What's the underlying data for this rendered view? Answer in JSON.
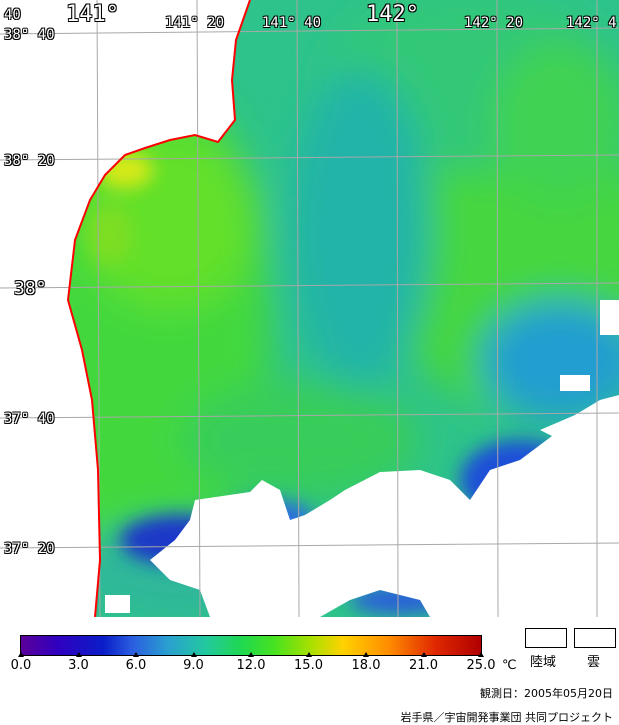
{
  "map": {
    "longitude_labels": [
      "141°",
      "141° 20",
      "141° 40",
      "142°",
      "142° 20",
      "142° 4"
    ],
    "latitude_labels": [
      "38° 40",
      "38° 20",
      "38°",
      "37° 40",
      "37° 20"
    ],
    "corner_fragment": "40",
    "land_color": "#ffffff",
    "coast_color": "#ff0000",
    "grid_color": "#aaaaaa"
  },
  "colorbar": {
    "ticks": [
      "0.0",
      "3.0",
      "6.0",
      "9.0",
      "12.0",
      "15.0",
      "18.0",
      "21.0",
      "25.0"
    ],
    "unit": "℃"
  },
  "legend": {
    "land_label": "陸域",
    "cloud_label": "雲"
  },
  "observation_date": "観測日：2005年05月20日",
  "credit": "岩手県／宇宙開発事業団  共同プロジェクト"
}
